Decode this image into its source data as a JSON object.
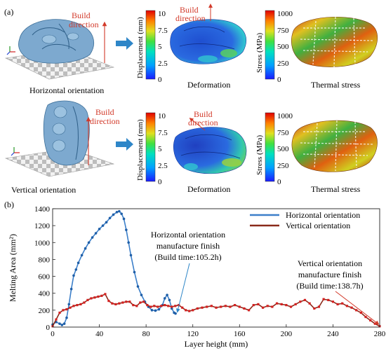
{
  "panel_a": {
    "label": "(a)",
    "build_direction": [
      "Build",
      "direction"
    ],
    "orientations": [
      "Horizontal orientation",
      "Vertical orientation"
    ],
    "deformation_caption": "Deformation",
    "thermal_caption": "Thermal stress",
    "displacement_bar": {
      "label": "Displacement (mm)",
      "ticks": [
        "10",
        "7.5",
        "5",
        "2.5",
        "0"
      ]
    },
    "stress_bar": {
      "label": "Stress (MPa)",
      "ticks": [
        "1000",
        "750",
        "500",
        "250",
        "0"
      ]
    },
    "colors": {
      "arrow_blue": "#2e86c8",
      "build_red": "#d23a2a",
      "part_blue": "#7da9cf",
      "plate_grey": "#e6e6e6"
    }
  },
  "panel_b": {
    "label": "(b)"
  },
  "chart_data": {
    "type": "line",
    "xlabel": "Layer height (mm)",
    "ylabel": "Melting Area (mm²)",
    "xlim": [
      0,
      280
    ],
    "ylim": [
      0,
      1400
    ],
    "xticks": [
      0,
      40,
      80,
      120,
      160,
      200,
      240,
      280
    ],
    "yticks": [
      0,
      200,
      400,
      600,
      800,
      1000,
      1200,
      1400
    ],
    "legend_position": "top-right",
    "series": [
      {
        "name": "Horizontal orientation",
        "color": "#3c7fc9",
        "marker_color": "#1f5fa8",
        "x": [
          0,
          3,
          6,
          8,
          10,
          12,
          14,
          16,
          18,
          20,
          22,
          25,
          28,
          31,
          34,
          37,
          40,
          43,
          46,
          49,
          52,
          55,
          57,
          59,
          61,
          63,
          65,
          67,
          70,
          73,
          76,
          79,
          82,
          85,
          88,
          91,
          94,
          96,
          98,
          100,
          102,
          104,
          105.2
        ],
        "y": [
          30,
          60,
          40,
          25,
          40,
          110,
          270,
          450,
          610,
          680,
          760,
          850,
          930,
          1000,
          1060,
          1110,
          1160,
          1200,
          1240,
          1290,
          1330,
          1360,
          1370,
          1340,
          1280,
          1150,
          1000,
          850,
          650,
          480,
          380,
          300,
          240,
          200,
          195,
          210,
          260,
          340,
          380,
          320,
          220,
          170,
          160
        ]
      },
      {
        "name": "Vertical orientation",
        "color": "#8a2a1a",
        "marker_color": "#d42020",
        "x": [
          0,
          3,
          6,
          9,
          12,
          15,
          18,
          21,
          24,
          27,
          30,
          33,
          36,
          39,
          42,
          45,
          48,
          51,
          54,
          57,
          60,
          63,
          66,
          69,
          72,
          75,
          78,
          81,
          84,
          87,
          90,
          93,
          96,
          99,
          102,
          105,
          108,
          111,
          114,
          117,
          120,
          124,
          128,
          132,
          136,
          140,
          144,
          148,
          152,
          156,
          160,
          164,
          168,
          172,
          176,
          180,
          184,
          188,
          192,
          196,
          200,
          204,
          208,
          212,
          216,
          220,
          224,
          228,
          232,
          236,
          240,
          244,
          248,
          252,
          256,
          260,
          264,
          268,
          272,
          276,
          280
        ],
        "y": [
          10,
          90,
          170,
          200,
          210,
          230,
          250,
          260,
          270,
          290,
          320,
          340,
          350,
          360,
          370,
          390,
          310,
          280,
          270,
          280,
          290,
          300,
          300,
          260,
          250,
          290,
          300,
          260,
          240,
          250,
          240,
          250,
          260,
          250,
          240,
          250,
          260,
          230,
          200,
          190,
          200,
          220,
          230,
          240,
          250,
          230,
          240,
          250,
          240,
          260,
          240,
          220,
          200,
          260,
          270,
          230,
          250,
          240,
          280,
          270,
          260,
          240,
          270,
          300,
          320,
          280,
          220,
          240,
          330,
          320,
          300,
          270,
          280,
          250,
          230,
          200,
          170,
          120,
          80,
          40,
          10
        ]
      }
    ],
    "annotations": [
      {
        "lines": [
          "Horizontal orientation",
          "manufacture finish",
          "(Build time:105.2h)"
        ],
        "x_target": 105.2,
        "y_target": 160
      },
      {
        "lines": [
          "Vertical orientation",
          "manufacture finish",
          "(Build time:138.7h)"
        ],
        "x_target": 280,
        "y_target": 10
      }
    ]
  }
}
